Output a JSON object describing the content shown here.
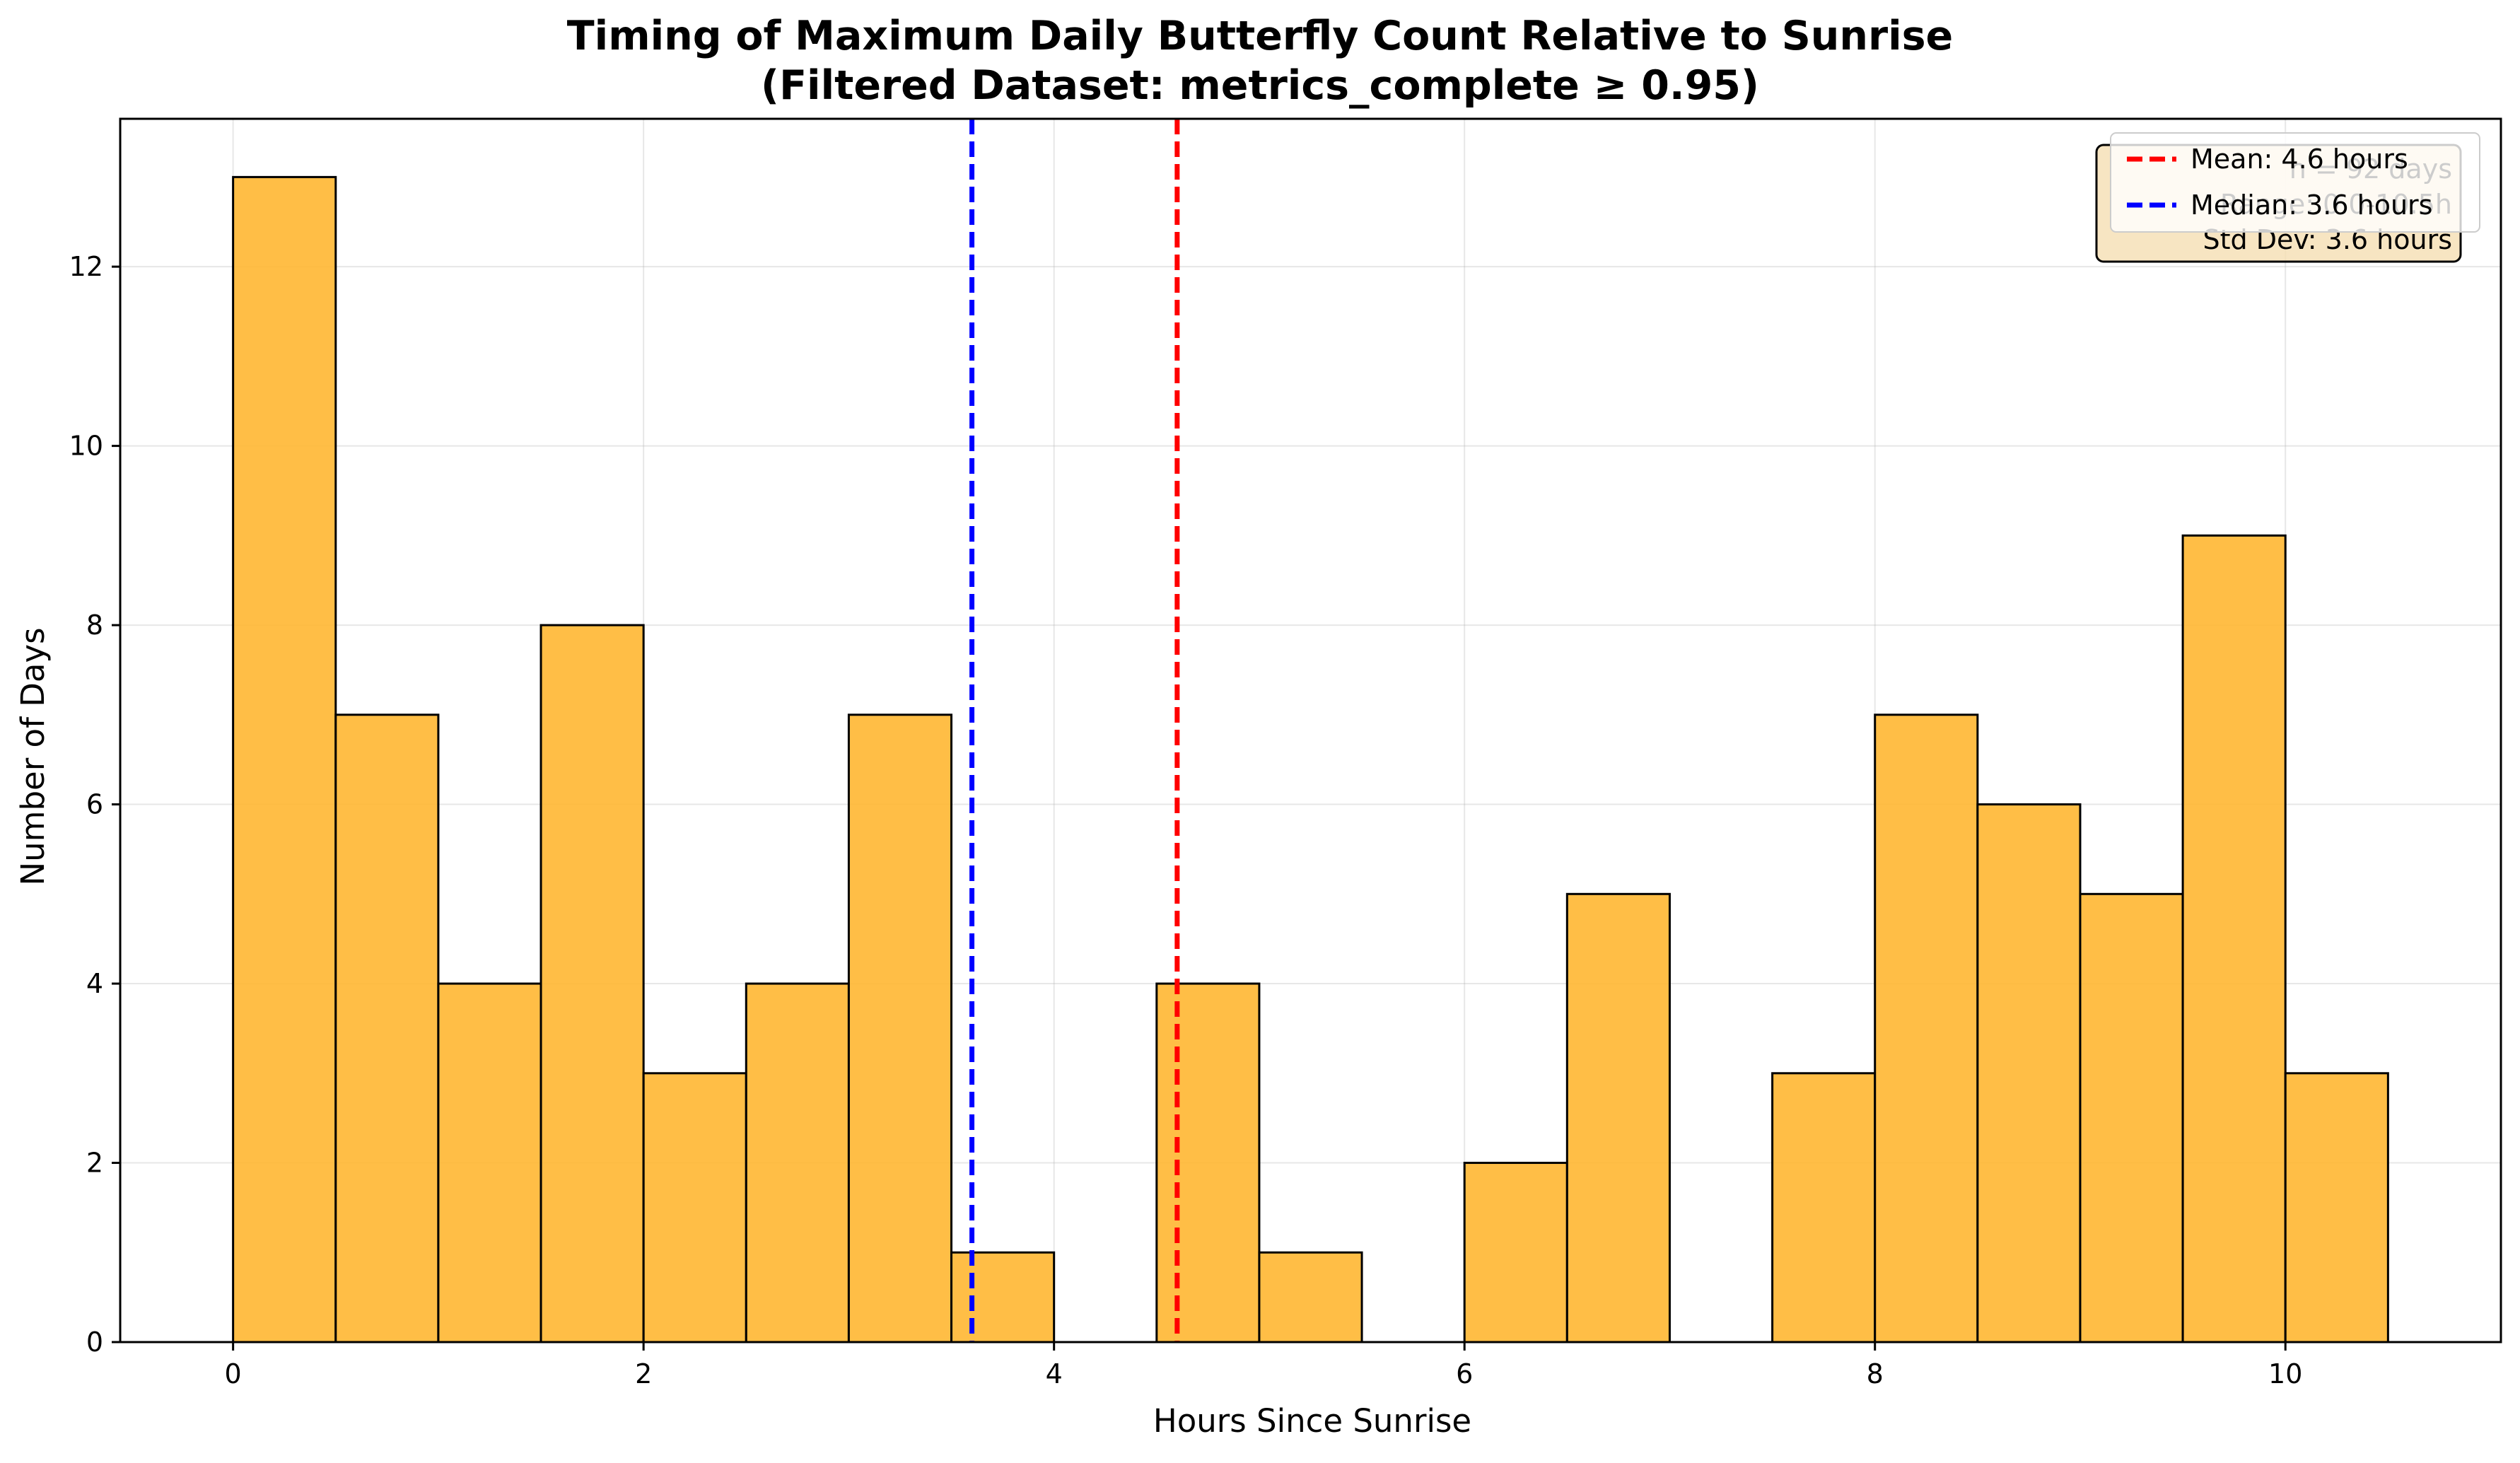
{
  "chart_data": {
    "type": "bar",
    "title": "Timing of Maximum Daily Butterfly Count Relative to Sunrise",
    "subtitle": "(Filtered Dataset: metrics_complete ≥ 0.95)",
    "xlabel": "Hours Since Sunrise",
    "ylabel": "Number of Days",
    "xlim": [
      -0.55,
      11.05
    ],
    "ylim": [
      0,
      13.65
    ],
    "x_ticks": [
      0,
      2,
      4,
      6,
      8,
      10
    ],
    "y_ticks": [
      0,
      2,
      4,
      6,
      8,
      10,
      12
    ],
    "bin_width": 0.5,
    "bins": [
      {
        "start": 0.0,
        "count": 13
      },
      {
        "start": 0.5,
        "count": 7
      },
      {
        "start": 1.0,
        "count": 4
      },
      {
        "start": 1.5,
        "count": 8
      },
      {
        "start": 2.0,
        "count": 3
      },
      {
        "start": 2.5,
        "count": 4
      },
      {
        "start": 3.0,
        "count": 7
      },
      {
        "start": 3.5,
        "count": 1
      },
      {
        "start": 4.0,
        "count": 0
      },
      {
        "start": 4.5,
        "count": 4
      },
      {
        "start": 5.0,
        "count": 1
      },
      {
        "start": 5.5,
        "count": 0
      },
      {
        "start": 6.0,
        "count": 2
      },
      {
        "start": 6.5,
        "count": 5
      },
      {
        "start": 7.0,
        "count": 0
      },
      {
        "start": 7.5,
        "count": 3
      },
      {
        "start": 8.0,
        "count": 7
      },
      {
        "start": 8.5,
        "count": 6
      },
      {
        "start": 9.0,
        "count": 5
      },
      {
        "start": 9.5,
        "count": 9
      },
      {
        "start": 10.0,
        "count": 3
      }
    ],
    "reference_lines": [
      {
        "name": "Mean",
        "value": 4.6,
        "label": "Mean: 4.6 hours",
        "color": "#ff0000"
      },
      {
        "name": "Median",
        "value": 3.6,
        "label": "Median: 3.6 hours",
        "color": "#0000ff"
      }
    ],
    "stats_box": {
      "lines": [
        "n = 92 days",
        "Range: 0.0-10.5h",
        "Std Dev: 3.6 hours"
      ]
    },
    "legend_position": "top-right",
    "grid": true,
    "colors": {
      "bar_fill": "#FFB732",
      "bar_edge": "#000000",
      "stats_box_fill": "#F5DEB3"
    }
  }
}
